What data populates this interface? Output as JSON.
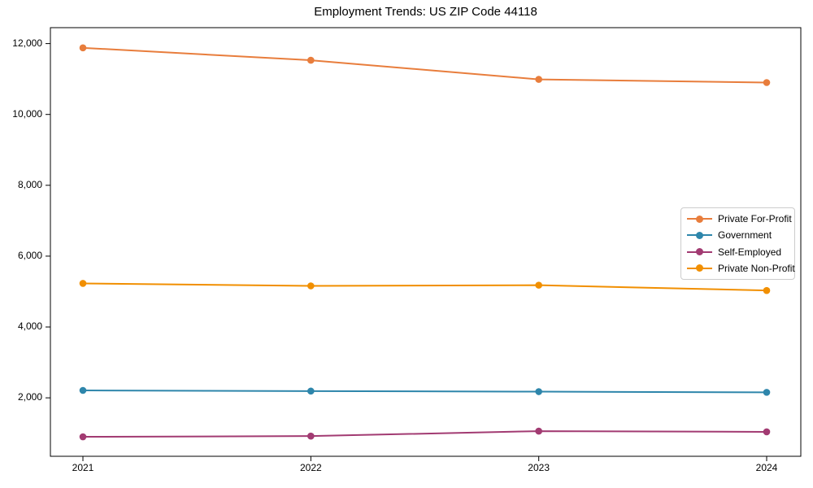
{
  "chart_data": {
    "type": "line",
    "title": "Employment Trends: US ZIP Code 44118",
    "xlabel": "",
    "ylabel": "",
    "categories": [
      "2021",
      "2022",
      "2023",
      "2024"
    ],
    "series": [
      {
        "name": "Private For-Profit",
        "color": "#E87D3C",
        "values": [
          11880,
          11530,
          10990,
          10900
        ]
      },
      {
        "name": "Government",
        "color": "#2E86AB",
        "values": [
          2210,
          2190,
          2175,
          2155
        ]
      },
      {
        "name": "Self-Employed",
        "color": "#A23B72",
        "values": [
          900,
          920,
          1060,
          1040
        ]
      },
      {
        "name": "Private Non-Profit",
        "color": "#F18F01",
        "values": [
          5230,
          5160,
          5180,
          5030
        ]
      }
    ],
    "yticks": [
      2000,
      4000,
      6000,
      8000,
      10000,
      12000
    ],
    "ytick_labels": [
      "2,000",
      "4,000",
      "6,000",
      "8,000",
      "10,000",
      "12,000"
    ],
    "ylim": [
      350,
      12450
    ],
    "grid": false,
    "legend_position": "center right",
    "marker": "circle",
    "frame_color": "#000000"
  }
}
